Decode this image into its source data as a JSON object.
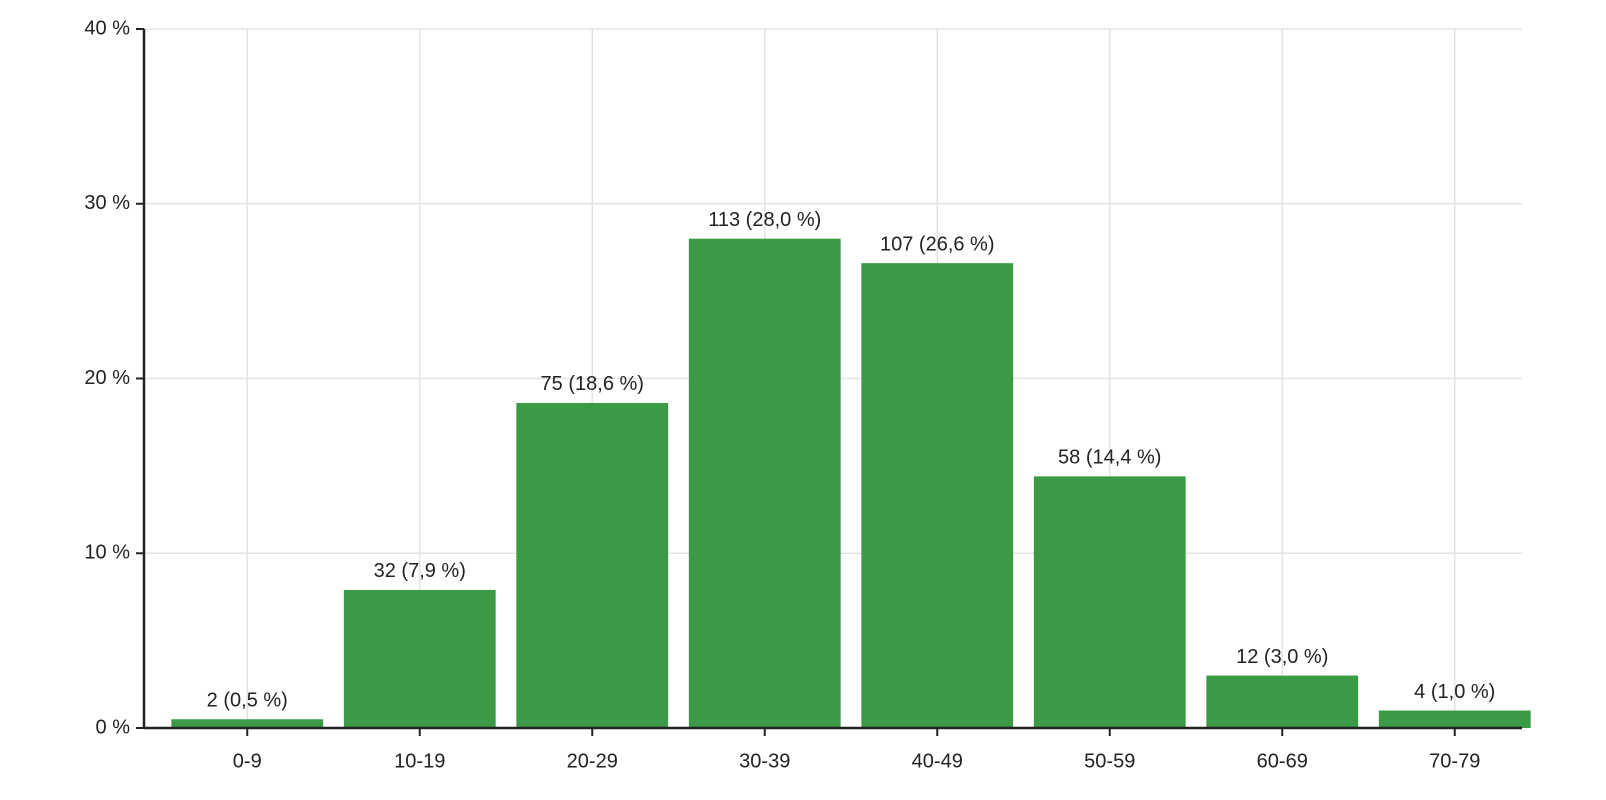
{
  "chart_data": {
    "type": "bar",
    "categories": [
      "0-9",
      "10-19",
      "20-29",
      "30-39",
      "40-49",
      "50-59",
      "60-69",
      "70-79"
    ],
    "values": [
      0.5,
      7.9,
      18.6,
      28.0,
      26.6,
      14.4,
      3.0,
      1.0
    ],
    "value_labels": [
      "2 (0,5 %)",
      "32 (7,9 %)",
      "75 (18,6 %)",
      "113 (28,0 %)",
      "107 (26,6 %)",
      "58 (14,4 %)",
      "12 (3,0 %)",
      "4 (1,0 %)"
    ],
    "color": "#3a9a45",
    "ylim": [
      0,
      40
    ],
    "yticks": [
      {
        "value": 0,
        "label": "0 %"
      },
      {
        "value": 10,
        "label": "10 %"
      },
      {
        "value": 20,
        "label": "20 %"
      },
      {
        "value": 30,
        "label": "30 %"
      },
      {
        "value": 40,
        "label": "40 %"
      }
    ],
    "grid": true
  }
}
